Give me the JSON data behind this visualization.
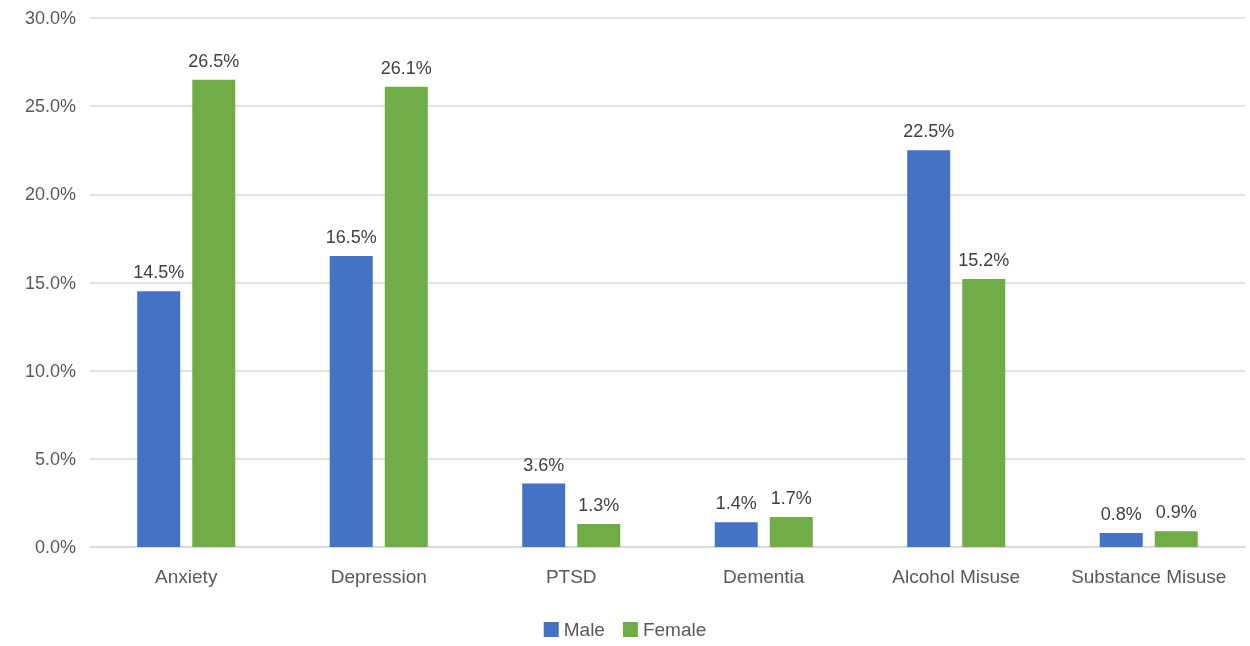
{
  "chart_data": {
    "type": "bar",
    "categories": [
      "Anxiety",
      "Depression",
      "PTSD",
      "Dementia",
      "Alcohol Misuse",
      "Substance Misuse"
    ],
    "series": [
      {
        "name": "Male",
        "color": "#4472c4",
        "values": [
          14.5,
          16.5,
          3.6,
          1.4,
          22.5,
          0.8
        ],
        "value_labels": [
          "14.5%",
          "16.5%",
          "3.6%",
          "1.4%",
          "22.5%",
          "0.8%"
        ]
      },
      {
        "name": "Female",
        "color": "#70ad47",
        "values": [
          26.5,
          26.1,
          1.3,
          1.7,
          15.2,
          0.9
        ],
        "value_labels": [
          "26.5%",
          "26.1%",
          "1.3%",
          "1.7%",
          "15.2%",
          "0.9%"
        ]
      }
    ],
    "ylim": [
      0,
      30
    ],
    "yticks": [
      {
        "value": 0,
        "label": "0.0%"
      },
      {
        "value": 5,
        "label": "5.0%"
      },
      {
        "value": 10,
        "label": "10.0%"
      },
      {
        "value": 15,
        "label": "15.0%"
      },
      {
        "value": 20,
        "label": "20.0%"
      },
      {
        "value": 25,
        "label": "25.0%"
      },
      {
        "value": 30,
        "label": "30.0%"
      }
    ],
    "grid": "y",
    "legend": "bottom"
  }
}
